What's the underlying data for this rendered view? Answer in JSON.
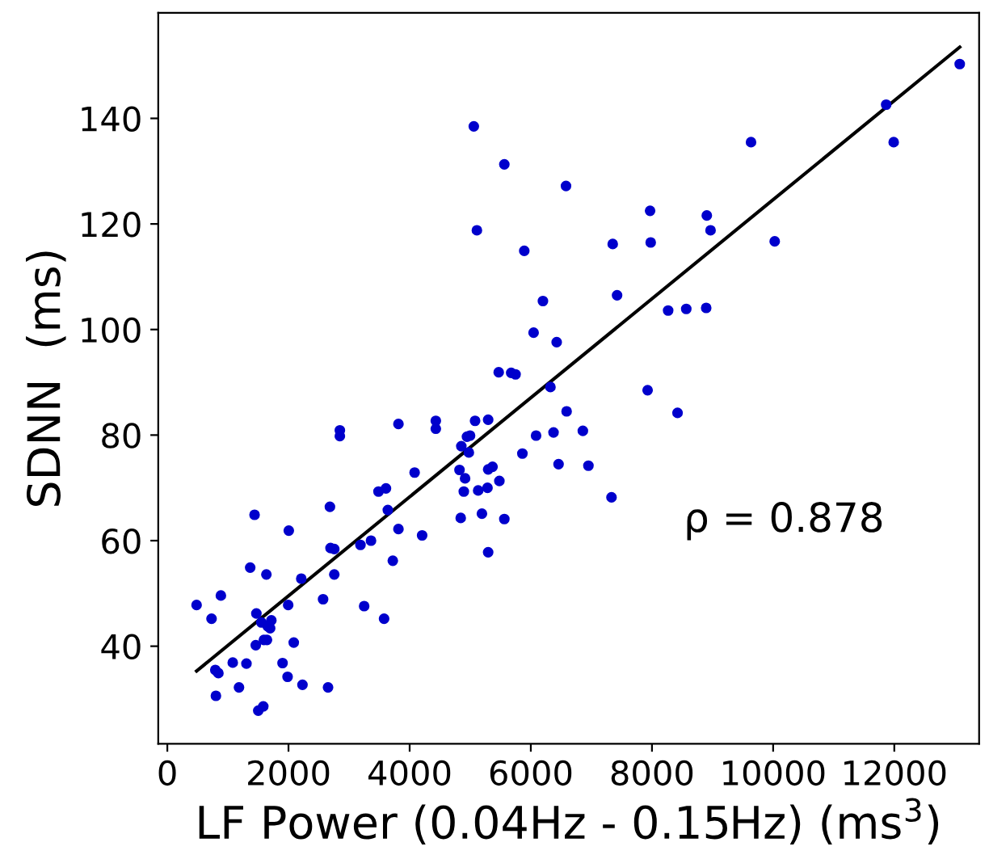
{
  "chart_data": {
    "type": "scatter",
    "xlabel": "LF Power (0.04Hz - 0.15Hz) (ms$^{3}$)",
    "ylabel": "SDNN  (ms)",
    "annotations": [
      "ρ = 0.878"
    ],
    "xlim": [
      -150,
      13400
    ],
    "ylim": [
      21.5,
      160
    ],
    "xticks": [
      0,
      2000,
      4000,
      6000,
      8000,
      10000,
      12000
    ],
    "yticks": [
      40,
      60,
      80,
      100,
      120,
      140
    ],
    "grid": false,
    "legend": false,
    "marker": "circle",
    "series": [
      {
        "color": "#0000cc",
        "x": [
          483,
          730,
          884,
          792,
          843,
          802,
          1080,
          1183,
          1306,
          1368,
          1440,
          1470,
          1460,
          1501,
          1553,
          1584,
          1594,
          1645,
          1655,
          1697,
          1717,
          1635,
          1902,
          1985,
          1995,
          2005,
          2087,
          2211,
          2231,
          2571,
          2653,
          2684,
          2694,
          2756,
          2756,
          2848,
          2848,
          3249,
          3188,
          3362,
          3486,
          3578,
          3609,
          3640,
          3722,
          3815,
          3815,
          4082,
          4206,
          4432,
          4432,
          4823,
          4843,
          4853,
          4915,
          4894,
          4946,
          4997,
          4977,
          5059,
          5080,
          5110,
          5131,
          5193,
          5285,
          5296,
          5296,
          5296,
          5368,
          5481,
          5470,
          5563,
          5563,
          5676,
          5748,
          5861,
          5892,
          6046,
          6087,
          6200,
          6324,
          6375,
          6427,
          6458,
          6581,
          6591,
          6859,
          6951,
          7332,
          7352,
          7424,
          7928,
          7969,
          7979,
          8267,
          8422,
          8566,
          8895,
          8905,
          8967,
          9635,
          10026,
          11866,
          11990,
          13080
        ],
        "values": [
          47.8,
          45.2,
          49.6,
          35.5,
          34.9,
          30.6,
          36.9,
          32.2,
          36.7,
          54.9,
          64.9,
          46.2,
          40.2,
          27.8,
          44.5,
          28.6,
          41.2,
          41.2,
          43.8,
          43.4,
          44.9,
          53.6,
          36.8,
          34.2,
          47.8,
          61.9,
          40.7,
          52.8,
          32.7,
          48.9,
          32.2,
          66.4,
          58.6,
          58.4,
          53.6,
          80.9,
          79.8,
          47.6,
          59.2,
          60.0,
          69.3,
          45.2,
          69.9,
          65.8,
          56.2,
          62.2,
          82.1,
          72.9,
          61.0,
          82.7,
          81.2,
          73.4,
          64.3,
          77.9,
          71.8,
          69.3,
          79.7,
          79.9,
          76.7,
          138.5,
          82.7,
          118.8,
          69.5,
          65.1,
          70.0,
          57.8,
          82.9,
          73.5,
          74.0,
          71.3,
          91.9,
          131.3,
          64.1,
          91.8,
          91.5,
          76.5,
          114.9,
          99.4,
          79.9,
          105.4,
          89.1,
          80.5,
          97.6,
          74.5,
          127.2,
          84.5,
          80.8,
          74.2,
          68.2,
          116.2,
          106.5,
          88.5,
          122.5,
          116.5,
          103.6,
          84.2,
          103.9,
          104.1,
          121.6,
          118.8,
          135.5,
          116.7,
          142.6,
          135.5,
          150.3
        ]
      },
      {
        "type": "line",
        "color": "#000000",
        "line_style": "solid",
        "marker": "none",
        "x": [
          483,
          13080
        ],
        "values": [
          35.3,
          153.5
        ]
      }
    ]
  }
}
